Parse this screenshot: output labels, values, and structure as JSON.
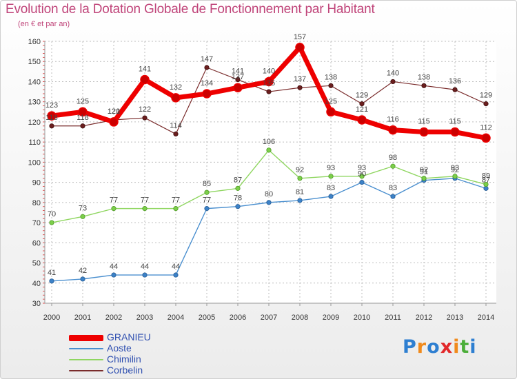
{
  "header": {
    "title": "Evolution de la Dotation Globale de Fonctionnement par Habitant",
    "subtitle": "(en € et par an)"
  },
  "logo": {
    "text": "Proxiti",
    "letters": [
      "P",
      "r",
      "o",
      "x",
      "i",
      "t",
      "i"
    ],
    "colors": [
      "#2e7fd1",
      "#f08a1c",
      "#2e7fd1",
      "#e2282a",
      "#f08a1c",
      "#4cae3a",
      "#2e7fd1"
    ]
  },
  "chart_data": {
    "type": "line",
    "title": "Evolution de la Dotation Globale de Fonctionnement par Habitant",
    "subtitle": "(en € et par an)",
    "xlabel": "",
    "ylabel": "",
    "x": [
      "2000",
      "2001",
      "2002",
      "2003",
      "2004",
      "2005",
      "2006",
      "2007",
      "2008",
      "2009",
      "2010",
      "2011",
      "2012",
      "2013",
      "2014"
    ],
    "ylim": [
      30,
      160
    ],
    "yticks": [
      30,
      40,
      50,
      60,
      70,
      80,
      90,
      100,
      110,
      120,
      130,
      140,
      150,
      160
    ],
    "grid": true,
    "legend_position": "bottom-left",
    "series": [
      {
        "name": "GRANIEU",
        "color": "#ee0000",
        "values": [
          123,
          125,
          120,
          141,
          132,
          134,
          137,
          140,
          157,
          125,
          121,
          116,
          115,
          115,
          112
        ]
      },
      {
        "name": "Aoste",
        "color": "#4a8fcf",
        "values": [
          41,
          42,
          44,
          44,
          44,
          77,
          78,
          80,
          81,
          83,
          90,
          83,
          91,
          92,
          87
        ]
      },
      {
        "name": "Chimilin",
        "color": "#8fd660",
        "values": [
          70,
          73,
          77,
          77,
          77,
          85,
          87,
          106,
          92,
          93,
          93,
          98,
          92,
          93,
          89
        ]
      },
      {
        "name": "Corbelin",
        "color": "#7a2c2c",
        "values": [
          118,
          118,
          121,
          122,
          114,
          147,
          141,
          135,
          137,
          138,
          129,
          140,
          138,
          136,
          129
        ]
      }
    ]
  }
}
